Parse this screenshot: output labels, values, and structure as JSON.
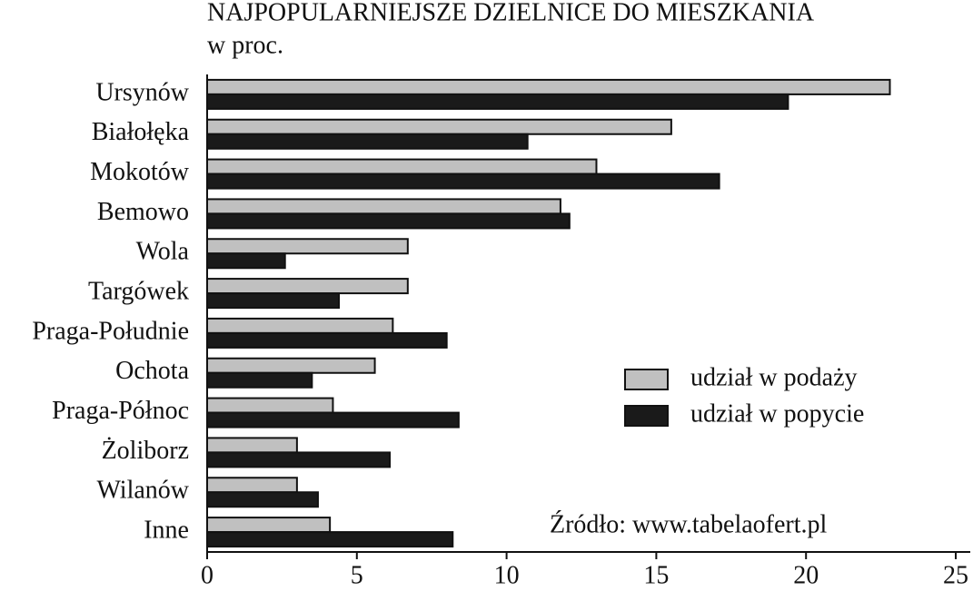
{
  "chart_data": {
    "type": "hbar",
    "title": "NAJPOPULARNIEJSZE DZIELNICE DO MIESZKANIA",
    "subtitle": "w proc.",
    "source": "Źródło: www.tabelaofert.pl",
    "categories": [
      "Ursynów",
      "Białołęka",
      "Mokotów",
      "Bemowo",
      "Wola",
      "Targówek",
      "Praga-Południe",
      "Ochota",
      "Praga-Północ",
      "Żoliborz",
      "Wilanów",
      "Inne"
    ],
    "series": [
      {
        "name": "udział w podaży",
        "color": "#c0c0c0",
        "values": [
          22.8,
          15.5,
          13.0,
          11.8,
          6.7,
          6.7,
          6.2,
          5.6,
          4.2,
          3.0,
          3.0,
          4.1
        ]
      },
      {
        "name": "udział w popycie",
        "color": "#1a1a1a",
        "values": [
          19.4,
          10.7,
          17.1,
          12.1,
          2.6,
          4.4,
          8.0,
          3.5,
          8.4,
          6.1,
          3.7,
          8.2
        ]
      }
    ],
    "xlim": [
      0,
      25
    ],
    "xticks": [
      0,
      5,
      10,
      15,
      20,
      25
    ],
    "grid": false,
    "legend": "right"
  }
}
